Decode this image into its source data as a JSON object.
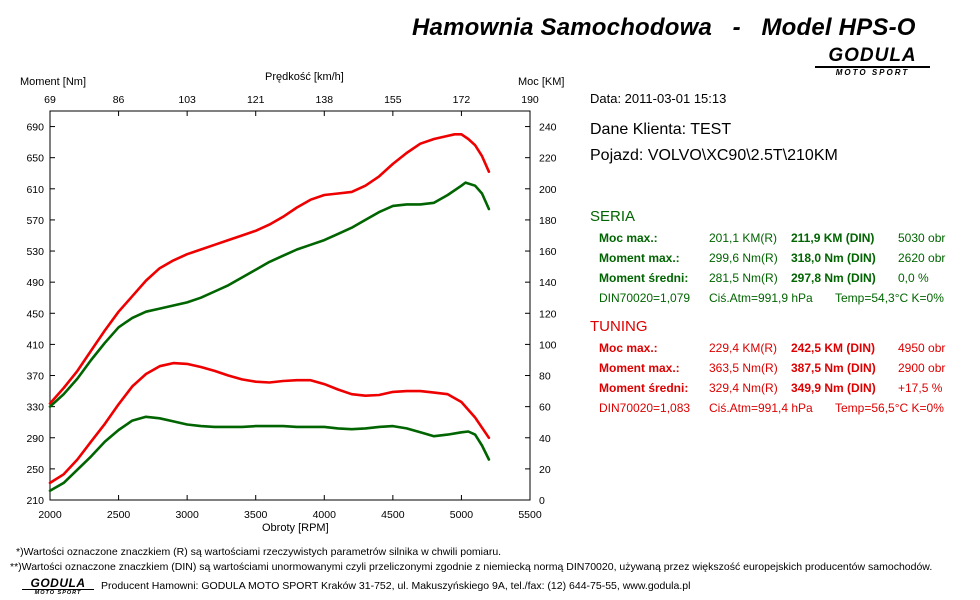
{
  "header": {
    "title": "Hamownia Samochodowa   -   Model HPS-O",
    "logo_text": "GODULA",
    "logo_sub": "MOTO SPORT"
  },
  "info": {
    "date": "Data: 2011-03-01  15:13",
    "client": "Dane Klienta: TEST",
    "vehicle": "Pojazd: VOLVO\\XC90\\2.5T\\210KM"
  },
  "seria": {
    "title": "SERIA",
    "color": "#006400",
    "rows": [
      [
        "Moc max.:",
        "201,1 KM(R)",
        "211,9 KM (DIN)",
        "5030 obr"
      ],
      [
        "Moment max.:",
        "299,6 Nm(R)",
        "318,0 Nm (DIN)",
        "2620 obr"
      ],
      [
        "Moment średni:",
        "281,5 Nm(R)",
        "297,8 Nm (DIN)",
        "0,0 %"
      ]
    ],
    "din": "DIN70020=1,079",
    "atm": "Ciś.Atm=991,9 hPa",
    "temp": "Temp=54,3°C  K=0%"
  },
  "tuning": {
    "title": "TUNING",
    "color": "#dd0000",
    "rows": [
      [
        "Moc max.:",
        "229,4 KM(R)",
        "242,5 KM (DIN)",
        "4950 obr"
      ],
      [
        "Moment max.:",
        "363,5 Nm(R)",
        "387,5 Nm (DIN)",
        "2900 obr"
      ],
      [
        "Moment średni:",
        "329,4 Nm(R)",
        "349,9 Nm (DIN)",
        "+17,5 %"
      ]
    ],
    "din": "DIN70020=1,083",
    "atm": "Ciś.Atm=991,4 hPa",
    "temp": "Temp=56,5°C  K=0%"
  },
  "footer": {
    "note1": "*)Wartości oznaczone znaczkiem (R) są wartościami rzeczywistych parametrów silnika w chwili pomiaru.",
    "note2": "**)Wartości oznaczone znaczkiem (DIN) są wartościami unormowanymi czyli przeliczonymi zgodnie z niemiecką normą DIN70020, używaną przez większość europejskich producentów samochodów.",
    "producer": "Producent Hamowni: GODULA MOTO SPORT Kraków 31-752, ul. Makuszyńskiego 9A, tel./fax: (12) 644-75-55, www.godula.pl"
  },
  "chart_data": {
    "type": "line",
    "xlabel": "Obroty [RPM]",
    "xlim": [
      2000,
      5500
    ],
    "xticks": [
      2000,
      2500,
      3000,
      3500,
      4000,
      4500,
      5000,
      5500
    ],
    "left_axis": {
      "label": "Moment [Nm]",
      "lim": [
        210,
        710
      ],
      "ticks": [
        210,
        250,
        290,
        330,
        370,
        410,
        450,
        490,
        530,
        570,
        610,
        650,
        690
      ]
    },
    "right_axis": {
      "label": "Moc [KM]",
      "lim": [
        0,
        250
      ],
      "ticks": [
        0,
        20,
        40,
        60,
        80,
        100,
        120,
        140,
        160,
        180,
        200,
        220,
        240
      ]
    },
    "top_axis": {
      "label": "Prędkość [km/h]",
      "ticks": [
        "69",
        "86",
        "103",
        "121",
        "138",
        "155",
        "172",
        "190"
      ]
    },
    "grid": false,
    "series": [
      {
        "color": "#ee0000",
        "axis": "right",
        "role": "power-tuning",
        "x": [
          2000,
          2100,
          2200,
          2300,
          2400,
          2500,
          2600,
          2700,
          2800,
          2900,
          3000,
          3100,
          3200,
          3300,
          3400,
          3500,
          3600,
          3700,
          3800,
          3900,
          4000,
          4100,
          4200,
          4300,
          4400,
          4500,
          4600,
          4700,
          4800,
          4900,
          4950,
          5000,
          5050,
          5100,
          5150,
          5200
        ],
        "y": [
          62,
          72,
          83,
          96,
          109,
          121,
          131,
          141,
          149,
          154,
          158,
          161,
          164,
          167,
          170,
          173,
          177,
          182,
          188,
          193,
          196,
          197,
          198,
          202,
          208,
          216,
          223,
          229,
          232,
          234,
          235,
          235,
          232,
          228,
          221,
          211
        ]
      },
      {
        "color": "#006400",
        "axis": "right",
        "role": "power-seria",
        "x": [
          2000,
          2100,
          2200,
          2300,
          2400,
          2500,
          2600,
          2700,
          2800,
          2900,
          3000,
          3100,
          3200,
          3300,
          3400,
          3500,
          3600,
          3700,
          3800,
          3900,
          4000,
          4100,
          4200,
          4300,
          4400,
          4500,
          4600,
          4700,
          4800,
          4900,
          5000,
          5030,
          5100,
          5150,
          5200
        ],
        "y": [
          60,
          68,
          78,
          90,
          101,
          111,
          117,
          121,
          123,
          125,
          127,
          130,
          134,
          138,
          143,
          148,
          153,
          157,
          161,
          164,
          167,
          171,
          175,
          180,
          185,
          189,
          190,
          190,
          191,
          196,
          202,
          204,
          202,
          197,
          187
        ]
      },
      {
        "color": "#ee0000",
        "axis": "left",
        "role": "torque-tuning",
        "x": [
          2000,
          2100,
          2200,
          2300,
          2400,
          2500,
          2600,
          2700,
          2800,
          2900,
          3000,
          3100,
          3200,
          3300,
          3400,
          3500,
          3600,
          3700,
          3800,
          3900,
          4000,
          4100,
          4200,
          4300,
          4400,
          4500,
          4600,
          4700,
          4800,
          4900,
          5000,
          5100,
          5200
        ],
        "y": [
          232,
          243,
          262,
          285,
          308,
          333,
          356,
          372,
          382,
          386,
          385,
          381,
          376,
          370,
          365,
          362,
          361,
          363,
          364,
          364,
          359,
          352,
          346,
          344,
          345,
          349,
          350,
          350,
          348,
          346,
          336,
          316,
          290
        ]
      },
      {
        "color": "#006400",
        "axis": "left",
        "role": "torque-seria",
        "x": [
          2000,
          2100,
          2200,
          2300,
          2400,
          2500,
          2600,
          2700,
          2800,
          2900,
          3000,
          3100,
          3200,
          3300,
          3400,
          3500,
          3600,
          3700,
          3800,
          3900,
          4000,
          4100,
          4200,
          4300,
          4400,
          4500,
          4600,
          4700,
          4800,
          4900,
          5000,
          5050,
          5100,
          5150,
          5200
        ],
        "y": [
          222,
          232,
          249,
          266,
          285,
          300,
          312,
          317,
          315,
          311,
          307,
          305,
          304,
          304,
          304,
          305,
          305,
          305,
          304,
          304,
          304,
          302,
          301,
          302,
          304,
          305,
          302,
          297,
          292,
          294,
          297,
          298,
          294,
          280,
          262
        ]
      }
    ]
  }
}
